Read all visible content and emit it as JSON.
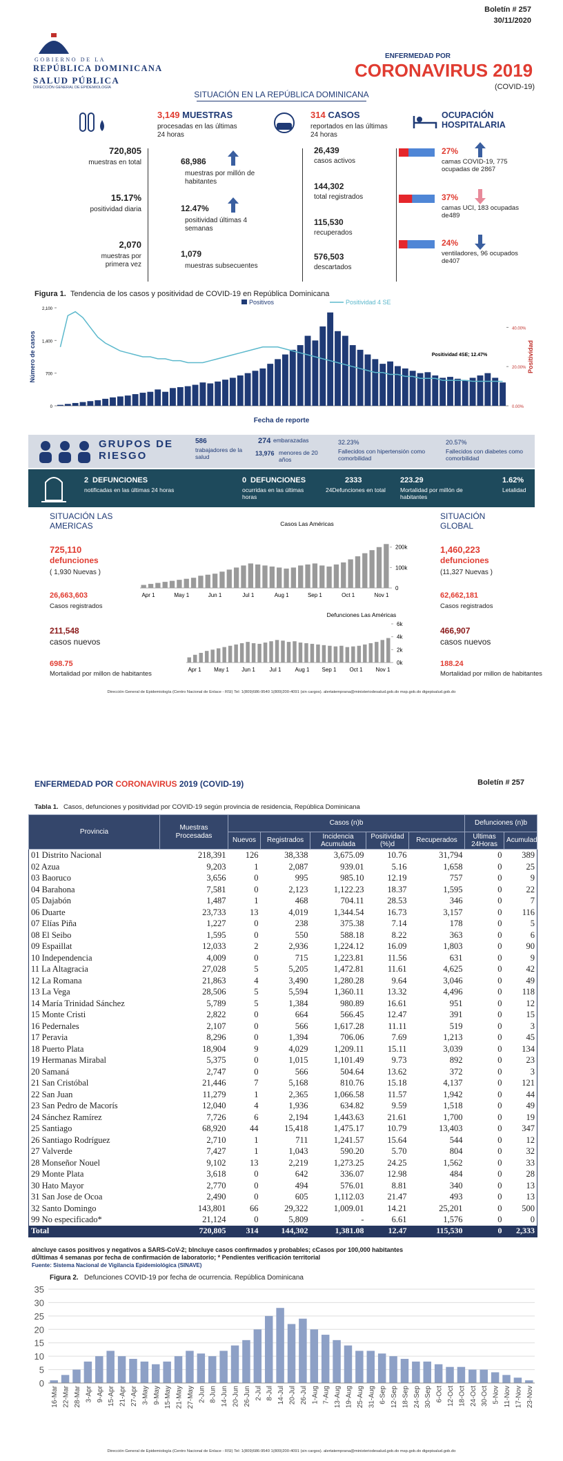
{
  "header": {
    "gov": "GOBIERNO DE LA",
    "republic": "REPÚBLICA DOMINICANA",
    "ministry": "SALUD PÚBLICA",
    "directorate": "DIRECCIÓN GENERAL DE EPIDEMIOLOGÍA",
    "bulletin": "Boletín # 257",
    "date": "30/11/2020",
    "kicker": "ENFERMEDAD POR",
    "title": "CORONAVIRUS 2019",
    "subtitle": "(COVID-19)",
    "section": "SITUACIÓN EN LA REPÚBLICA DOMINICANA"
  },
  "samples": {
    "count": "3,149",
    "label": "MUESTRAS",
    "desc": "procesadas en las últimas 24 horas",
    "total": "720,805",
    "total_label": "muestras en total",
    "per_million": "68,986",
    "per_million_label": "muestras por millón de habitantes",
    "daily_pos": "15.17%",
    "daily_pos_label": "positividad diaria",
    "pos_4w": "12.47%",
    "pos_4w_label": "positividad últimas 4 semanas",
    "first": "2,070",
    "first_label": "muestras por primera vez",
    "subsequent": "1,079",
    "subsequent_label": "muestras subsecuentes"
  },
  "cases": {
    "count": "314",
    "label": "CASOS",
    "desc": "reportados en las últimas 24 horas",
    "active": "26,439",
    "active_label": "casos activos",
    "total": "144,302",
    "total_label": "total registrados",
    "recovered": "115,530",
    "recovered_label": "recuperados",
    "discarded": "576,503",
    "discarded_label": "descartados"
  },
  "hospital": {
    "title": "OCUPACIÓN HOSPITALARIA",
    "items": [
      {
        "value": 27,
        "label": "27%",
        "text": "camas COVID-19,  775 ocupadas de 2867"
      },
      {
        "value": 37,
        "label": "37%",
        "text": "camas UCI,  183 ocupadas de489"
      },
      {
        "value": 24,
        "label": "24%",
        "text": "ventiladores, 96 ocupados de407"
      }
    ]
  },
  "figure1": {
    "caption_num": "Figura 1.",
    "caption": "Tendencia de los casos y positividad de COVID-19 en República Dominicana"
  },
  "risk": {
    "title": "GRUPOS DE RIESGO",
    "health_workers": "586",
    "health_workers_label": "trabajadores de la salud",
    "pregnant": "274",
    "pregnant_label": "embarazadas",
    "minors": "13,976",
    "minors_label": "menores de 20 años",
    "hypertension": "32.23%",
    "hypertension_label": "Fallecidos con hipertensión como comorbilidad",
    "diabetes": "20.57%",
    "diabetes_label": "Fallecidos con diabetes como comorbilidad"
  },
  "deaths": {
    "new": "2",
    "new_label": "DEFUNCIONES",
    "new_desc": "notificadas en las últimas 24 horas",
    "occurred": "0",
    "occurred_label": "DEFUNCIONES",
    "occurred_desc": "ocurridas en las últimas horas",
    "total": "2333",
    "total_desc": "24Defunciones en total",
    "mortality": "223.29",
    "mortality_desc": "Mortalidad por millón de habitantes",
    "lethality": "1.62%",
    "lethality_desc": "Letalidad"
  },
  "americas": {
    "title": "SITUACIÓN LAS AMERICAS",
    "deaths": "725,110",
    "deaths_label": "defunciones",
    "new_deaths": "( 1,930 Nuevas )",
    "cases": "26,663,603",
    "cases_label": "Casos registrados",
    "new_cases": "211,548",
    "new_cases_label": "casos nuevos",
    "mortality": "698.75",
    "mortality_label": "Mortalidad por millon de habitantes"
  },
  "global": {
    "title": "SITUACIÓN GLOBAL",
    "deaths": "1,460,223",
    "deaths_label": "defunciones",
    "new_deaths": "(11,327 Nuevas )",
    "cases": "62,662,181",
    "cases_label": "Casos registrados",
    "new_cases": "466,907",
    "new_cases_label": "casos nuevos",
    "mortality": "188.24",
    "mortality_label": "Mortalidad por millon de habitantes"
  },
  "footer": "Dirección General de Epidemiología (Centro Nacional de Enlace - RSI) Tel: 1(809)686-9540  1(809)200-4091 (sin cargos).   alertatemprana@ministeriodesalud.gob.do    msp.gob.do    digepisalud.gob.do",
  "page2": {
    "kicker": "ENFERMEDAD POR",
    "title_red": "CORONAVIRUS",
    "title_rest": "2019 (COVID-19)",
    "bulletin": "Boletín # 257"
  },
  "table": {
    "caption_num": "Tabla 1.",
    "caption": "Casos, defunciones y positividad por COVID-19 según provincia de residencia, República Dominicana",
    "group_cases": "Casos (n)b",
    "group_deaths": "Defunciones (n)b",
    "columns": [
      "Provincia",
      "Muestras Procesadas",
      "Nuevos",
      "Registrados",
      "Incidencia Acumulada",
      "Positividad (%)d",
      "Recuperados",
      "Ultimas 24Horas",
      "Acumulados"
    ],
    "rows": [
      [
        "01 Distrito Nacional",
        "218,391",
        "126",
        "38,338",
        "3,675.09",
        "10.76",
        "31,794",
        "0",
        "389"
      ],
      [
        "02 Azua",
        "9,203",
        "1",
        "2,087",
        "939.01",
        "5.16",
        "1,658",
        "0",
        "25"
      ],
      [
        "03 Baoruco",
        "3,656",
        "0",
        "995",
        "985.10",
        "12.19",
        "757",
        "0",
        "9"
      ],
      [
        "04 Barahona",
        "7,581",
        "0",
        "2,123",
        "1,122.23",
        "18.37",
        "1,595",
        "0",
        "22"
      ],
      [
        "05 Dajabón",
        "1,487",
        "1",
        "468",
        "704.11",
        "28.53",
        "346",
        "0",
        "7"
      ],
      [
        "06 Duarte",
        "23,733",
        "13",
        "4,019",
        "1,344.54",
        "16.73",
        "3,157",
        "0",
        "116"
      ],
      [
        "07 Elías Piña",
        "1,227",
        "0",
        "238",
        "375.38",
        "7.14",
        "178",
        "0",
        "5"
      ],
      [
        "08 El Seibo",
        "1,595",
        "0",
        "550",
        "588.18",
        "8.22",
        "363",
        "0",
        "6"
      ],
      [
        "09 Espaillat",
        "12,033",
        "2",
        "2,936",
        "1,224.12",
        "16.09",
        "1,803",
        "0",
        "90"
      ],
      [
        "10 Independencia",
        "4,009",
        "0",
        "715",
        "1,223.81",
        "11.56",
        "631",
        "0",
        "9"
      ],
      [
        "11 La Altagracia",
        "27,028",
        "5",
        "5,205",
        "1,472.81",
        "11.61",
        "4,625",
        "0",
        "42"
      ],
      [
        "12 La Romana",
        "21,863",
        "4",
        "3,490",
        "1,280.28",
        "9.64",
        "3,046",
        "0",
        "49"
      ],
      [
        "13 La Vega",
        "28,506",
        "5",
        "5,594",
        "1,360.11",
        "13.32",
        "4,496",
        "0",
        "118"
      ],
      [
        "14 María Trinidad Sánchez",
        "5,789",
        "5",
        "1,384",
        "980.89",
        "16.61",
        "951",
        "0",
        "12"
      ],
      [
        "15 Monte Cristi",
        "2,822",
        "0",
        "664",
        "566.45",
        "12.47",
        "391",
        "0",
        "15"
      ],
      [
        "16 Pedernales",
        "2,107",
        "0",
        "566",
        "1,617.28",
        "11.11",
        "519",
        "0",
        "3"
      ],
      [
        "17 Peravia",
        "8,296",
        "0",
        "1,394",
        "706.06",
        "7.69",
        "1,213",
        "0",
        "45"
      ],
      [
        "18 Puerto Plata",
        "18,904",
        "9",
        "4,029",
        "1,209.11",
        "15.11",
        "3,039",
        "0",
        "134"
      ],
      [
        "19 Hermanas Mirabal",
        "5,375",
        "0",
        "1,015",
        "1,101.49",
        "9.73",
        "892",
        "0",
        "23"
      ],
      [
        "20 Samaná",
        "2,747",
        "0",
        "566",
        "504.64",
        "13.62",
        "372",
        "0",
        "3"
      ],
      [
        "21 San Cristóbal",
        "21,446",
        "7",
        "5,168",
        "810.76",
        "15.18",
        "4,137",
        "0",
        "121"
      ],
      [
        "22 San Juan",
        "11,279",
        "1",
        "2,365",
        "1,066.58",
        "11.57",
        "1,942",
        "0",
        "44"
      ],
      [
        "23 San Pedro de Macorís",
        "12,040",
        "4",
        "1,936",
        "634.82",
        "9.59",
        "1,518",
        "0",
        "49"
      ],
      [
        "24 Sánchez Ramírez",
        "7,726",
        "6",
        "2,194",
        "1,443.63",
        "21.61",
        "1,700",
        "0",
        "19"
      ],
      [
        "25 Santiago",
        "68,920",
        "44",
        "15,418",
        "1,475.17",
        "10.79",
        "13,403",
        "0",
        "347"
      ],
      [
        "26 Santiago Rodríguez",
        "2,710",
        "1",
        "711",
        "1,241.57",
        "15.64",
        "544",
        "0",
        "12"
      ],
      [
        "27 Valverde",
        "7,427",
        "1",
        "1,043",
        "590.20",
        "5.70",
        "804",
        "0",
        "32"
      ],
      [
        "28 Monseñor Nouel",
        "9,102",
        "13",
        "2,219",
        "1,273.25",
        "24.25",
        "1,562",
        "0",
        "33"
      ],
      [
        "29 Monte Plata",
        "3,618",
        "0",
        "642",
        "336.07",
        "12.98",
        "484",
        "0",
        "28"
      ],
      [
        "30 Hato Mayor",
        "2,770",
        "0",
        "494",
        "576.01",
        "8.81",
        "340",
        "0",
        "13"
      ],
      [
        "31 San Jose de Ocoa",
        "2,490",
        "0",
        "605",
        "1,112.03",
        "21.47",
        "493",
        "0",
        "13"
      ],
      [
        "32 Santo Domingo",
        "143,801",
        "66",
        "29,322",
        "1,009.01",
        "14.21",
        "25,201",
        "0",
        "500"
      ],
      [
        "99 No especificado*",
        "21,124",
        "0",
        "5,809",
        "-",
        "6.61",
        "1,576",
        "0",
        "0"
      ]
    ],
    "total": [
      "Total",
      "720,805",
      "314",
      "144,302",
      "1,381.08",
      "12.47",
      "115,530",
      "0",
      "2,333"
    ],
    "notes": [
      "aIncluye casos positivos y negativos a SARS-CoV-2; bIncluye casos confirmados y probables; cCasos por 100,000 habitantes",
      "dÚltimas 4 semanas por fecha de confirmación de laboratorio; * Pendientes verificación territorial"
    ],
    "source": "Fuente: Sistema Nacional de Vigilancia Epidemiológica (SINAVE)"
  },
  "figure2": {
    "caption_num": "Figura 2.",
    "caption": "Defunciones COVID-19 por fecha de ocurrencia. República Dominicana"
  },
  "chart_data": [
    {
      "type": "bar",
      "series": [
        {
          "name": "Positivos",
          "color": "#1f3a75",
          "values": [
            20,
            40,
            60,
            80,
            100,
            120,
            150,
            180,
            200,
            220,
            250,
            280,
            300,
            350,
            300,
            380,
            400,
            420,
            450,
            500,
            480,
            520,
            560,
            600,
            650,
            700,
            750,
            800,
            900,
            1000,
            1100,
            1200,
            1300,
            1500,
            1400,
            1700,
            2000,
            1600,
            1500,
            1300,
            1200,
            1100,
            1000,
            900,
            950,
            850,
            800,
            750,
            700,
            720,
            650,
            600,
            620,
            580,
            550,
            600,
            650,
            700,
            600,
            500
          ]
        },
        {
          "name": "Positividad 4 SE",
          "color": "#5bb8cc",
          "type": "line",
          "axis": "y2",
          "values": [
            30,
            46,
            48,
            45,
            40,
            35,
            32,
            30,
            28,
            27,
            26,
            25,
            25,
            24,
            24,
            23,
            23,
            22,
            22,
            22,
            23,
            24,
            25,
            26,
            27,
            28,
            29,
            30,
            30,
            30,
            29,
            28,
            27,
            26,
            25,
            24,
            23,
            22,
            21,
            20,
            19,
            18,
            17,
            17,
            16,
            16,
            15,
            15,
            14,
            14,
            14,
            13,
            13,
            13,
            13,
            12.5,
            12.5,
            12.5,
            12.5,
            12.47
          ]
        }
      ],
      "ylim": [
        0,
        2100
      ],
      "yticks": [
        0,
        700,
        {
          "value": 1400,
          "label": "1,400"
        },
        {
          "value": 2100,
          "label": "2,100"
        }
      ],
      "y2lim": [
        0,
        50
      ],
      "y2ticks": [
        {
          "value": 0,
          "label": "0.00%"
        },
        {
          "value": 20,
          "label": "20.00%"
        },
        {
          "value": 40,
          "label": "40.00%"
        }
      ],
      "y_label": "Número de casos",
      "x_label": "Fecha de reporte",
      "y2_label": "Positividad",
      "annotation": "Positividad 4SE; 12.47%"
    },
    {
      "type": "bar",
      "title": "Casos Las Américas",
      "color": "#9a9a9a",
      "values": [
        15000,
        20000,
        25000,
        30000,
        35000,
        40000,
        45000,
        50000,
        60000,
        65000,
        70000,
        80000,
        90000,
        100000,
        110000,
        120000,
        115000,
        110000,
        105000,
        100000,
        95000,
        100000,
        110000,
        115000,
        120000,
        110000,
        105000,
        115000,
        125000,
        140000,
        155000,
        170000,
        185000,
        200000,
        215000
      ],
      "ylim": [
        0,
        270000
      ],
      "yticks": [
        0,
        {
          "value": 100000,
          "label": "100k"
        },
        {
          "value": 200000,
          "label": "200k"
        }
      ],
      "x_labels": [
        "Apr 1",
        "May 1",
        "Jun 1",
        "Jul 1",
        "Aug 1",
        "Sep 1",
        "Oct 1",
        "Nov 1"
      ]
    },
    {
      "type": "bar",
      "title": "Defunciones Las Américas",
      "color": "#9a9a9a",
      "values": [
        800,
        1200,
        1500,
        1800,
        2000,
        2200,
        2400,
        2600,
        2800,
        3000,
        3200,
        3000,
        2900,
        3100,
        3300,
        3500,
        3400,
        3200,
        3300,
        3100,
        3000,
        2900,
        2800,
        2700,
        2600,
        2500,
        2600,
        2400,
        2500,
        2600,
        2800,
        3000,
        3200,
        3500,
        3800
      ],
      "ylim": [
        0,
        6000
      ],
      "yticks": [
        {
          "value": 0,
          "label": "0k"
        },
        {
          "value": 2000,
          "label": "2k"
        },
        {
          "value": 4000,
          "label": "4k"
        },
        {
          "value": 6000,
          "label": "6k"
        }
      ],
      "x_labels": [
        "Apr 1",
        "May 1",
        "Jun 1",
        "Jul 1",
        "Aug 1",
        "Sep 1",
        "Oct 1",
        "Nov 1"
      ]
    },
    {
      "type": "bar",
      "color": "#8da0c6",
      "categories": [
        "16-Mar",
        "22-Mar",
        "28-Mar",
        "3-Apr",
        "9-Apr",
        "15-Apr",
        "21-Apr",
        "27-Apr",
        "3-May",
        "9-May",
        "15-May",
        "21-May",
        "27-May",
        "2-Jun",
        "8-Jun",
        "14-Jun",
        "20-Jun",
        "26-Jun",
        "2-Jul",
        "8-Jul",
        "14-Jul",
        "20-Jul",
        "26-Jul",
        "1-Aug",
        "7-Aug",
        "13-Aug",
        "19-Aug",
        "25-Aug",
        "31-Aug",
        "6-Sep",
        "12-Sep",
        "18-Sep",
        "24-Sep",
        "30-Sep",
        "6-Oct",
        "12-Oct",
        "18-Oct",
        "24-Oct",
        "30-Oct",
        "5-Nov",
        "11-Nov",
        "17-Nov",
        "23-Nov"
      ],
      "values": [
        1,
        3,
        5,
        8,
        10,
        12,
        10,
        9,
        8,
        7,
        8,
        10,
        12,
        11,
        10,
        12,
        14,
        16,
        20,
        25,
        28,
        22,
        24,
        20,
        18,
        16,
        14,
        12,
        12,
        11,
        10,
        9,
        8,
        8,
        7,
        6,
        6,
        5,
        5,
        4,
        3,
        2,
        1
      ],
      "ylim": [
        0,
        35
      ],
      "yticks": [
        0,
        5,
        10,
        15,
        20,
        25,
        30,
        35
      ],
      "grid": true
    }
  ]
}
